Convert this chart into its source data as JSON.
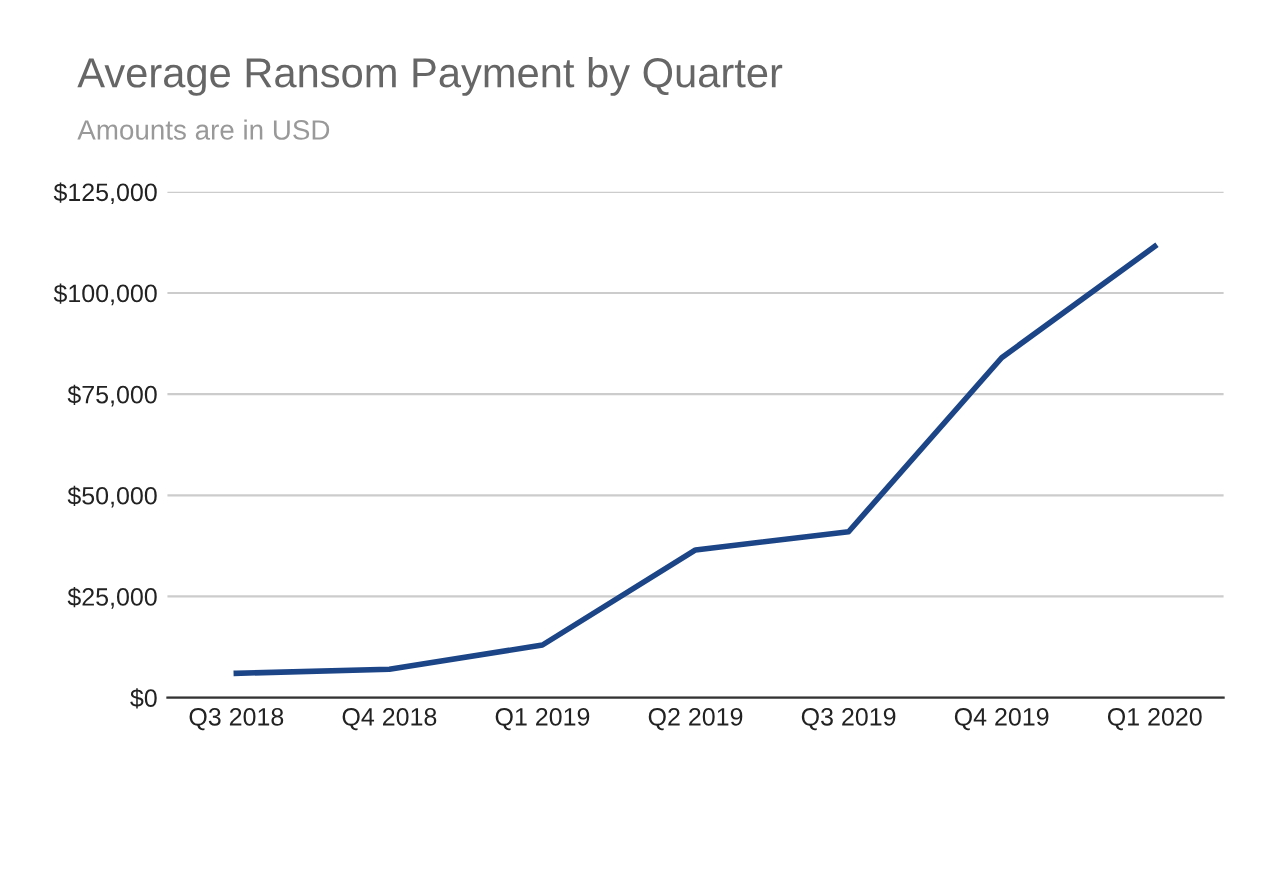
{
  "chart_data": {
    "type": "line",
    "title": "Average Ransom Payment by Quarter",
    "subtitle": "Amounts are in USD",
    "categories": [
      "Q3 2018",
      "Q4 2018",
      "Q1 2019",
      "Q2 2019",
      "Q3 2019",
      "Q4 2019",
      "Q1 2020"
    ],
    "series": [
      {
        "color": "#1c4587",
        "values": [
          6000,
          7000,
          13000,
          36500,
          41000,
          84000,
          111500
        ]
      }
    ],
    "ylim": [
      0,
      125000
    ],
    "yticks": [
      {
        "value": 0,
        "label": "$0"
      },
      {
        "value": 25000,
        "label": "$25,000"
      },
      {
        "value": 50000,
        "label": "$50,000"
      },
      {
        "value": 75000,
        "label": "$75,000"
      },
      {
        "value": 100000,
        "label": "$100,000"
      },
      {
        "value": 125000,
        "label": "$125,000"
      }
    ],
    "grid": "y",
    "marker": "none",
    "line_style": "solid"
  }
}
